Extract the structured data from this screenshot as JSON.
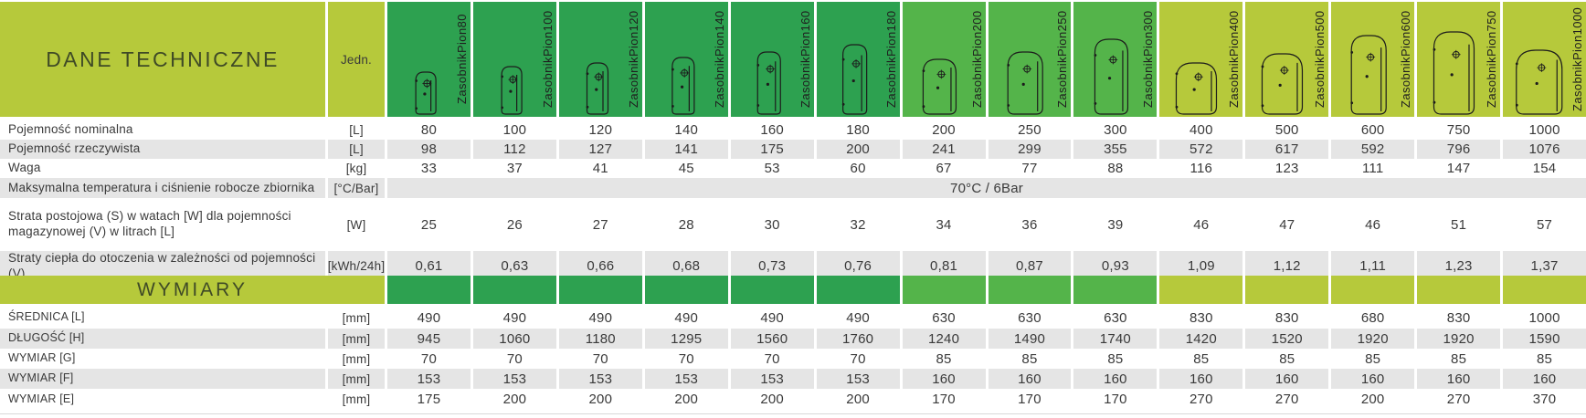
{
  "colors": {
    "lime": "#b6c93b",
    "green_dark": "#2da150",
    "green_mid": "#54b44a",
    "stripe_gray": "#e5e5e5",
    "title_text": "#3f4a26",
    "value_text": "#3a3a3a"
  },
  "header": {
    "title": "DANE TECHNICZNE",
    "unit_col": "Jedn.",
    "products": [
      {
        "name": "ZasobnikPion80",
        "group": "dark",
        "tank_w": 24,
        "tank_h": 48
      },
      {
        "name": "ZasobnikPion100",
        "group": "dark",
        "tank_w": 24,
        "tank_h": 54
      },
      {
        "name": "ZasobnikPion120",
        "group": "dark",
        "tank_w": 25,
        "tank_h": 58
      },
      {
        "name": "ZasobnikPion140",
        "group": "dark",
        "tank_w": 26,
        "tank_h": 64
      },
      {
        "name": "ZasobnikPion160",
        "group": "dark",
        "tank_w": 27,
        "tank_h": 70
      },
      {
        "name": "ZasobnikPion180",
        "group": "dark",
        "tank_w": 28,
        "tank_h": 78
      },
      {
        "name": "ZasobnikPion200",
        "group": "mid",
        "tank_w": 38,
        "tank_h": 62
      },
      {
        "name": "ZasobnikPion250",
        "group": "mid",
        "tank_w": 40,
        "tank_h": 70
      },
      {
        "name": "ZasobnikPion300",
        "group": "mid",
        "tank_w": 38,
        "tank_h": 84
      },
      {
        "name": "ZasobnikPion400",
        "group": "lime",
        "tank_w": 46,
        "tank_h": 58
      },
      {
        "name": "ZasobnikPion500",
        "group": "lime",
        "tank_w": 46,
        "tank_h": 68
      },
      {
        "name": "ZasobnikPion600",
        "group": "lime",
        "tank_w": 40,
        "tank_h": 88
      },
      {
        "name": "ZasobnikPion750",
        "group": "lime",
        "tank_w": 46,
        "tank_h": 92
      },
      {
        "name": "ZasobnikPion1000",
        "group": "lime",
        "tank_w": 52,
        "tank_h": 72
      }
    ]
  },
  "rows": [
    {
      "label": "Pojemność nominalna",
      "unit": "[L]",
      "values": [
        "80",
        "100",
        "120",
        "140",
        "160",
        "180",
        "200",
        "250",
        "300",
        "400",
        "500",
        "600",
        "750",
        "1000"
      ]
    },
    {
      "label": "Pojemność rzeczywista",
      "unit": "[L]",
      "values": [
        "98",
        "112",
        "127",
        "141",
        "175",
        "200",
        "241",
        "299",
        "355",
        "572",
        "617",
        "592",
        "796",
        "1076"
      ]
    },
    {
      "label": "Waga",
      "unit": "[kg]",
      "values": [
        "33",
        "37",
        "41",
        "45",
        "53",
        "60",
        "67",
        "77",
        "88",
        "116",
        "123",
        "111",
        "147",
        "154"
      ]
    },
    {
      "label": "Maksymalna temperatura i ciśnienie robocze zbiornika",
      "unit": "[°C/Bar]",
      "span_value": "70°C / 6Bar"
    },
    {
      "label": "Strata postojowa (S) w watach [W] dla pojemności magazynowej (V) w litrach [L]",
      "unit": "[W]",
      "values": [
        "25",
        "26",
        "27",
        "28",
        "30",
        "32",
        "34",
        "36",
        "39",
        "46",
        "47",
        "46",
        "51",
        "57"
      ]
    },
    {
      "label": "Straty ciepła do otoczenia w zależności od pojemności (V)",
      "unit": "[kWh/24h]",
      "values": [
        "0,61",
        "0,63",
        "0,66",
        "0,68",
        "0,73",
        "0,76",
        "0,81",
        "0,87",
        "0,93",
        "1,09",
        "1,12",
        "1,11",
        "1,23",
        "1,37"
      ]
    }
  ],
  "section2": {
    "title": "WYMIARY"
  },
  "dim_rows": [
    {
      "label": "ŚREDNICA [L]",
      "unit": "[mm]",
      "values": [
        "490",
        "490",
        "490",
        "490",
        "490",
        "490",
        "630",
        "630",
        "630",
        "830",
        "830",
        "680",
        "830",
        "1000"
      ]
    },
    {
      "label": "DŁUGOŚĆ [H]",
      "unit": "[mm]",
      "values": [
        "945",
        "1060",
        "1180",
        "1295",
        "1560",
        "1760",
        "1240",
        "1490",
        "1740",
        "1420",
        "1520",
        "1920",
        "1920",
        "1590"
      ]
    },
    {
      "label": "WYMIAR [G]",
      "unit": "[mm]",
      "values": [
        "70",
        "70",
        "70",
        "70",
        "70",
        "70",
        "85",
        "85",
        "85",
        "85",
        "85",
        "85",
        "85",
        "85"
      ]
    },
    {
      "label": "WYMIAR [F]",
      "unit": "[mm]",
      "values": [
        "153",
        "153",
        "153",
        "153",
        "153",
        "153",
        "160",
        "160",
        "160",
        "160",
        "160",
        "160",
        "160",
        "160"
      ]
    },
    {
      "label": "WYMIAR [E]",
      "unit": "[mm]",
      "values": [
        "175",
        "200",
        "200",
        "200",
        "200",
        "200",
        "170",
        "170",
        "170",
        "270",
        "270",
        "200",
        "270",
        "370"
      ]
    }
  ]
}
